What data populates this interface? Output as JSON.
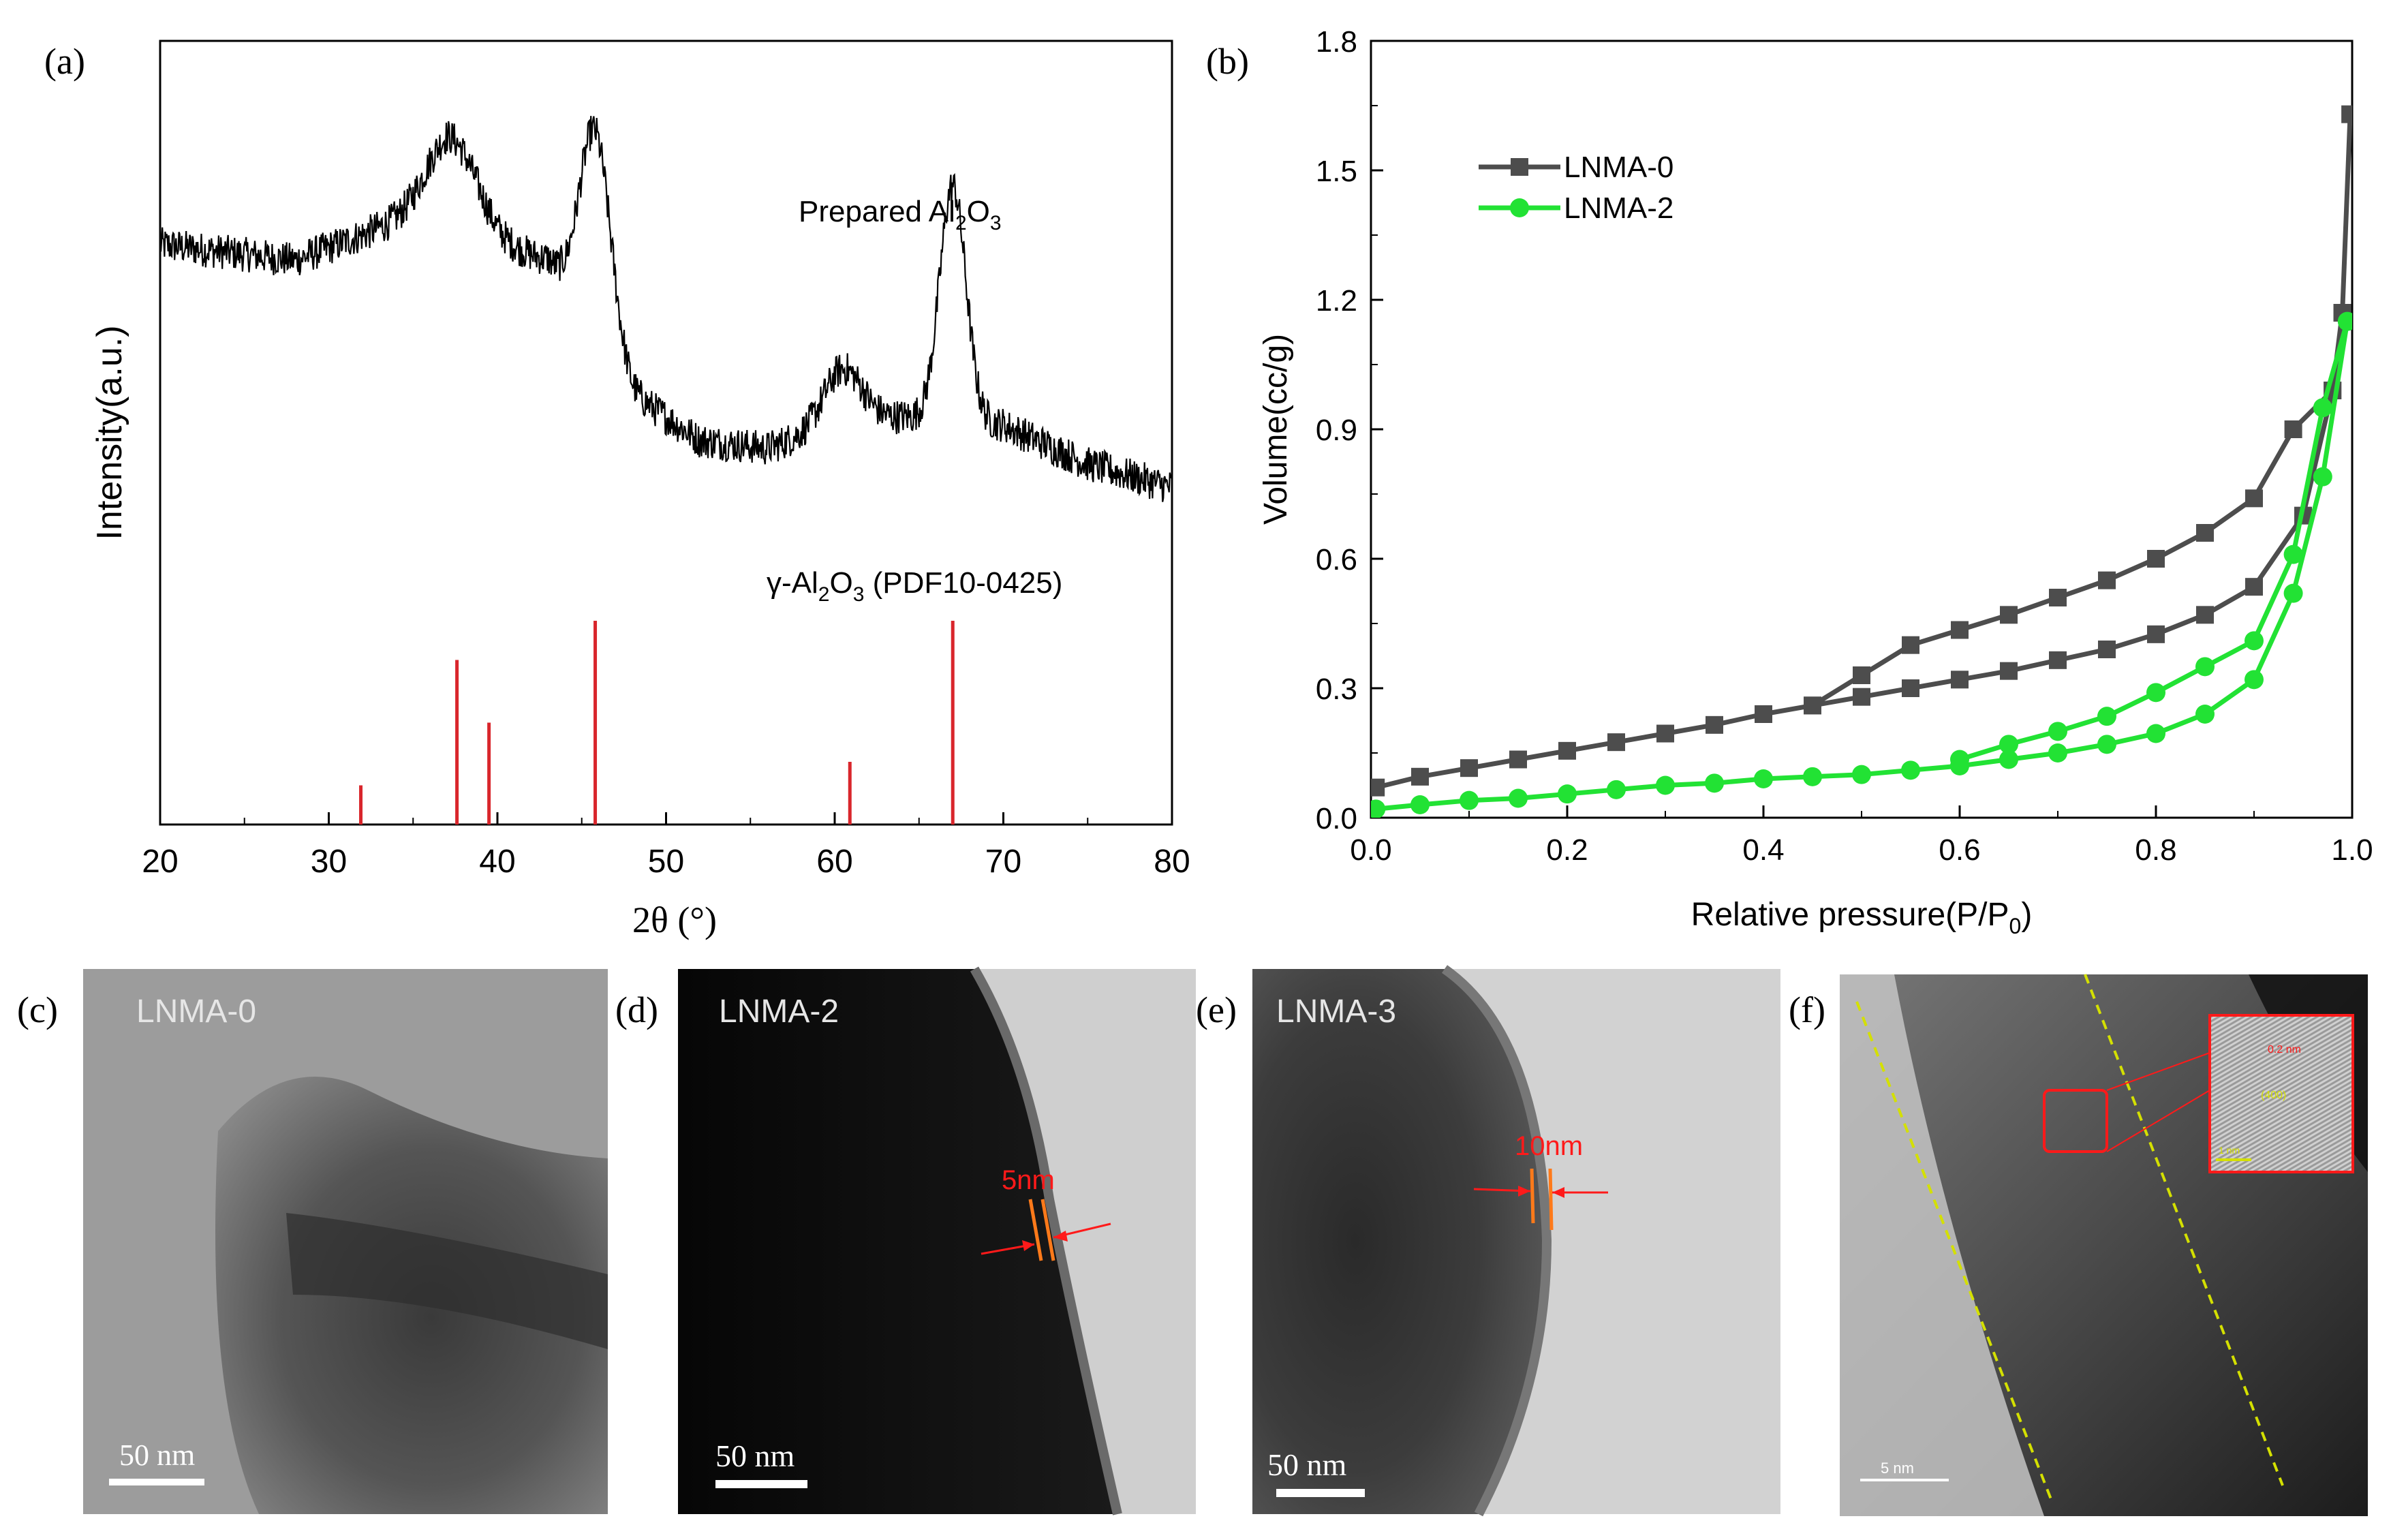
{
  "chart_data": [
    {
      "panel_label": "(a)",
      "type": "line",
      "xlabel": "2θ (°)",
      "ylabel": "Intensity(a.u.)",
      "xlim": [
        20,
        80
      ],
      "x_ticks": [
        20,
        30,
        40,
        50,
        60,
        70,
        80
      ],
      "grid": false,
      "series": [
        {
          "name": "Prepared Al2O3",
          "label_main": "Prepared Al",
          "label_sub1": "2",
          "label_mid": "O",
          "label_sub2": "3",
          "style": "noisy-xrd",
          "color": "#000000",
          "baseline_points": [
            [
              20,
              0.74
            ],
            [
              24,
              0.73
            ],
            [
              28,
              0.72
            ],
            [
              33,
              0.76
            ],
            [
              37,
              0.78
            ],
            [
              40,
              0.74
            ],
            [
              43,
              0.72
            ],
            [
              48,
              0.55
            ],
            [
              52,
              0.49
            ],
            [
              56,
              0.48
            ],
            [
              60,
              0.51
            ],
            [
              64,
              0.52
            ],
            [
              70,
              0.51
            ],
            [
              75,
              0.46
            ],
            [
              80,
              0.43
            ]
          ],
          "peaks": [
            {
              "center": 37.3,
              "height": 0.1,
              "width": 2.2
            },
            {
              "center": 45.8,
              "height": 0.26,
              "width": 1.3
            },
            {
              "center": 60.5,
              "height": 0.07,
              "width": 1.6
            },
            {
              "center": 67.0,
              "height": 0.3,
              "width": 1.1
            }
          ]
        },
        {
          "name": "γ-Al2O3 (PDF10-0425)",
          "label_main": "γ-Al",
          "label_sub1": "2",
          "label_mid": "O",
          "label_sub2": "3",
          "label_tail": " (PDF10-0425)",
          "style": "stick",
          "color": "#d9262c",
          "x": [
            31.9,
            37.6,
            39.5,
            45.8,
            60.9,
            67.0
          ],
          "values": [
            0.05,
            0.21,
            0.13,
            0.26,
            0.08,
            0.26
          ]
        }
      ]
    },
    {
      "panel_label": "(b)",
      "type": "line",
      "xlabel": "Relative pressure(P/P",
      "xlabel_sub": "0",
      "xlabel_tail": ")",
      "ylabel": "Volume(cc/g)",
      "xlim": [
        0.0,
        1.0
      ],
      "ylim": [
        0.0,
        1.8
      ],
      "x_ticks": [
        0.0,
        0.2,
        0.4,
        0.6,
        0.8,
        1.0
      ],
      "y_ticks": [
        0.0,
        0.3,
        0.6,
        0.9,
        1.2,
        1.5,
        1.8
      ],
      "x_tick_labels": [
        "0.0",
        "0.2",
        "0.4",
        "0.6",
        "0.8",
        "1.0"
      ],
      "y_tick_labels": [
        "0.0",
        "0.3",
        "0.6",
        "0.9",
        "1.2",
        "1.5",
        "1.8"
      ],
      "legend": "top-left",
      "grid": false,
      "series": [
        {
          "name": "LNMA-0",
          "color": "#4d4d4d",
          "marker": "square",
          "x": [
            0.005,
            0.05,
            0.1,
            0.15,
            0.2,
            0.25,
            0.3,
            0.35,
            0.4,
            0.45,
            0.5,
            0.55,
            0.6,
            0.65,
            0.7,
            0.75,
            0.8,
            0.85,
            0.9,
            0.95,
            0.98,
            0.99,
            0.998,
            0.99,
            0.98,
            0.94,
            0.9,
            0.85,
            0.8,
            0.75,
            0.7,
            0.65,
            0.6,
            0.55,
            0.5,
            0.45
          ],
          "y": [
            0.07,
            0.095,
            0.115,
            0.135,
            0.155,
            0.175,
            0.195,
            0.215,
            0.24,
            0.26,
            0.28,
            0.3,
            0.32,
            0.34,
            0.365,
            0.39,
            0.425,
            0.47,
            0.535,
            0.7,
            0.99,
            1.17,
            1.63,
            1.17,
            0.99,
            0.9,
            0.74,
            0.66,
            0.6,
            0.55,
            0.51,
            0.47,
            0.435,
            0.4,
            0.33,
            0.26
          ]
        },
        {
          "name": "LNMA-2",
          "color": "#22e234",
          "marker": "circle",
          "x": [
            0.005,
            0.05,
            0.1,
            0.15,
            0.2,
            0.25,
            0.3,
            0.35,
            0.4,
            0.45,
            0.5,
            0.55,
            0.6,
            0.65,
            0.7,
            0.75,
            0.8,
            0.85,
            0.9,
            0.94,
            0.97,
            0.995,
            0.97,
            0.94,
            0.9,
            0.85,
            0.8,
            0.75,
            0.7,
            0.65,
            0.6
          ],
          "y": [
            0.02,
            0.03,
            0.04,
            0.045,
            0.055,
            0.065,
            0.075,
            0.08,
            0.09,
            0.095,
            0.1,
            0.11,
            0.12,
            0.135,
            0.15,
            0.17,
            0.195,
            0.24,
            0.32,
            0.52,
            0.79,
            1.15,
            0.95,
            0.61,
            0.41,
            0.35,
            0.29,
            0.235,
            0.2,
            0.17,
            0.135
          ]
        }
      ]
    }
  ],
  "images": {
    "c": {
      "label": "(c)",
      "sample": "LNMA-0",
      "scale": "50 nm"
    },
    "d": {
      "label": "(d)",
      "sample": "LNMA-2",
      "scale": "50 nm",
      "annotation": "5nm"
    },
    "e": {
      "label": "(e)",
      "sample": "LNMA-3",
      "scale": "50 nm",
      "annotation": "10nm"
    },
    "f": {
      "label": "(f)",
      "scale": "5 nm",
      "inset_scale": "1 nm",
      "inset_text_top": "0.2 nm",
      "inset_text_bottom": "(400)"
    }
  },
  "colors": {
    "stick": "#d9262c",
    "lnma0": "#4d4d4d",
    "lnma2": "#22e234",
    "annotation_red": "#ff1a1a",
    "annotation_orange": "#ff7a1a",
    "lattice_line": "#d4e000"
  }
}
